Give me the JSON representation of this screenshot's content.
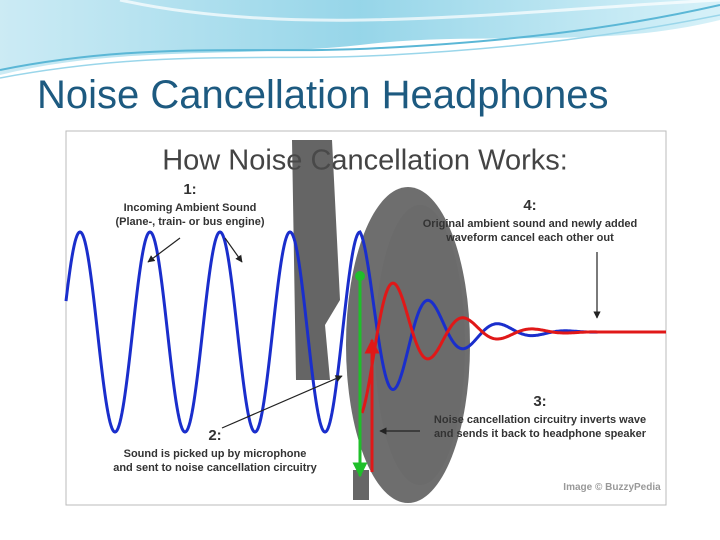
{
  "slide": {
    "title": "Noise Cancellation Headphones"
  },
  "diagram": {
    "title": "How Noise Cancellation Works:",
    "labels": [
      {
        "number": "1:",
        "lines": [
          "Incoming Ambient Sound",
          "(Plane-, train- or bus engine)"
        ]
      },
      {
        "number": "2:",
        "lines": [
          "Sound is picked up by microphone",
          "and sent to noise cancellation circuitry"
        ]
      },
      {
        "number": "3:",
        "lines": [
          "Noise cancellation circuitry inverts wave",
          "and sends it back to headphone speaker"
        ]
      },
      {
        "number": "4:",
        "lines": [
          "Original ambient sound and newly added",
          "waveform cancel each other out"
        ]
      }
    ],
    "credit": "Image © BuzzyPedia"
  }
}
